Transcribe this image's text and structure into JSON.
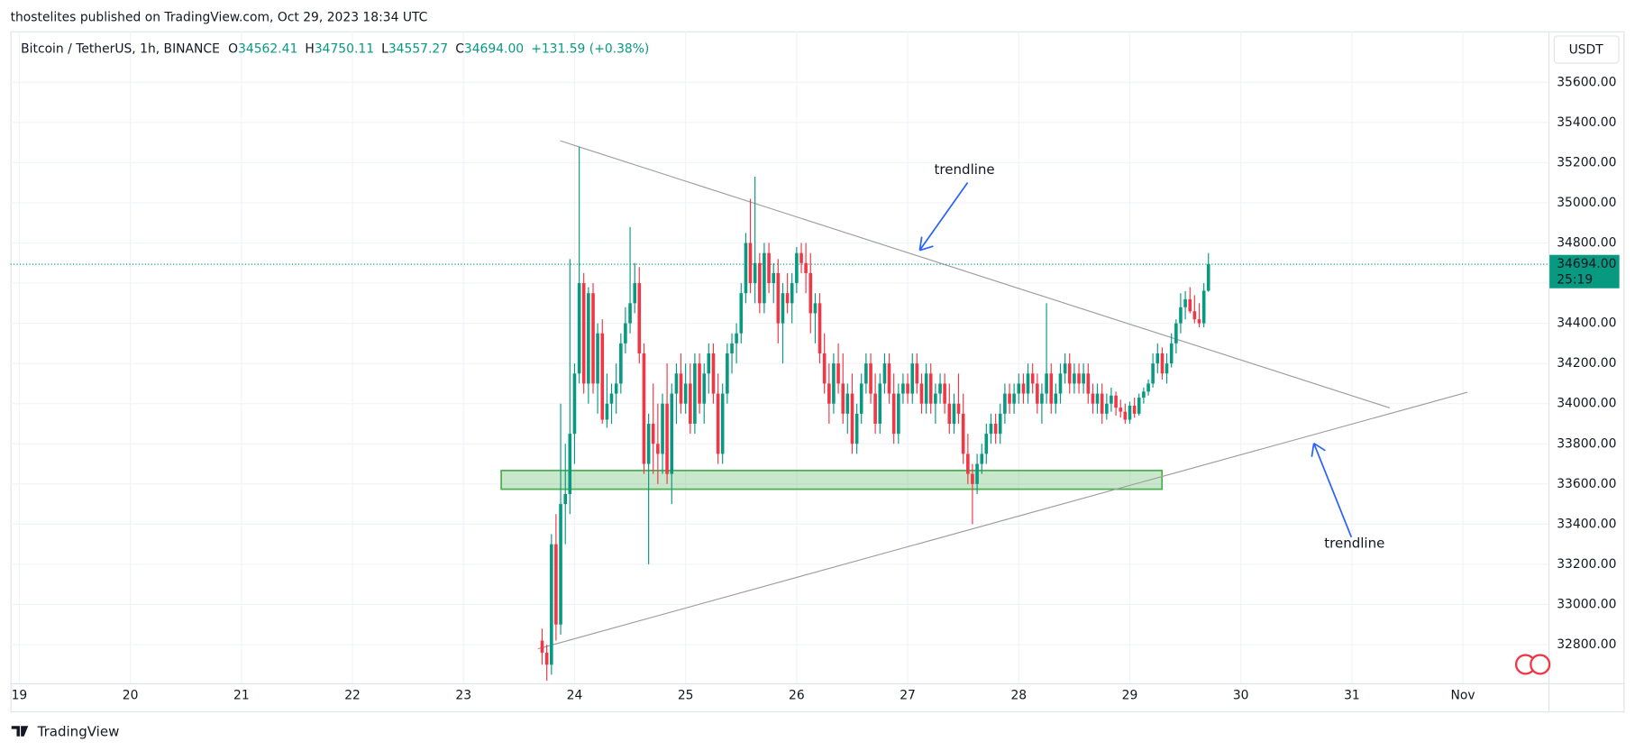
{
  "published": "thostelites published on TradingView.com, Oct 29, 2023 18:34 UTC",
  "footer": "TradingView",
  "chart_data": {
    "type": "candlestick",
    "symbol": "Bitcoin / TetherUS, 1h, BINANCE",
    "legend": [
      {
        "key": "O",
        "value": "34562.41"
      },
      {
        "key": "H",
        "value": "34750.11"
      },
      {
        "key": "L",
        "value": "34557.27"
      },
      {
        "key": "C",
        "value": "34694.00"
      }
    ],
    "change": "+131.59 (+0.38%)",
    "currency": "USDT",
    "up_color": "#089981",
    "down_color": "#f23645",
    "grid": true,
    "xlim": [
      18.92,
      32.77
    ],
    "xticks": [
      19,
      20,
      21,
      22,
      23,
      24,
      25,
      26,
      27,
      28,
      29,
      30,
      31,
      {
        "value": 32,
        "label": "Nov"
      }
    ],
    "ylim": [
      32608,
      35854
    ],
    "yticks": [
      {
        "value": 32800,
        "label": "32800.00"
      },
      {
        "value": 33000,
        "label": "33000.00"
      },
      {
        "value": 33200,
        "label": "33200.00"
      },
      {
        "value": 33400,
        "label": "33400.00"
      },
      {
        "value": 33600,
        "label": "33600.00"
      },
      {
        "value": 33800,
        "label": "33800.00"
      },
      {
        "value": 34000,
        "label": "34000.00"
      },
      {
        "value": 34200,
        "label": "34200.00"
      },
      {
        "value": 34400,
        "label": "34400.00"
      },
      {
        "value": 34600,
        "label": "34600.00"
      },
      {
        "value": 34800,
        "label": "34800.00"
      },
      {
        "value": 35000,
        "label": "35000.00"
      },
      {
        "value": 35200,
        "label": "35200.00"
      },
      {
        "value": 35400,
        "label": "35400.00"
      },
      {
        "value": 35600,
        "label": "35600.00"
      }
    ],
    "last_price": {
      "value": 34694,
      "label": "34694.00"
    },
    "countdown": "25:19",
    "x": [
      23.708,
      23.75,
      23.792,
      23.833,
      23.875,
      23.917,
      23.958,
      24,
      24.042,
      24.083,
      24.125,
      24.167,
      24.208,
      24.25,
      24.292,
      24.333,
      24.375,
      24.417,
      24.458,
      24.5,
      24.542,
      24.583,
      24.625,
      24.667,
      24.708,
      24.75,
      24.792,
      24.833,
      24.875,
      24.917,
      24.958,
      25,
      25.042,
      25.083,
      25.125,
      25.167,
      25.208,
      25.25,
      25.292,
      25.333,
      25.375,
      25.417,
      25.458,
      25.5,
      25.542,
      25.583,
      25.625,
      25.667,
      25.708,
      25.75,
      25.792,
      25.833,
      25.875,
      25.917,
      25.958,
      26,
      26.042,
      26.083,
      26.125,
      26.167,
      26.208,
      26.25,
      26.292,
      26.333,
      26.375,
      26.417,
      26.458,
      26.5,
      26.542,
      26.583,
      26.625,
      26.667,
      26.708,
      26.75,
      26.792,
      26.833,
      26.875,
      26.917,
      26.958,
      27,
      27.042,
      27.083,
      27.125,
      27.167,
      27.208,
      27.25,
      27.292,
      27.333,
      27.375,
      27.417,
      27.458,
      27.5,
      27.542,
      27.583,
      27.625,
      27.667,
      27.708,
      27.75,
      27.792,
      27.833,
      27.875,
      27.917,
      27.958,
      28,
      28.042,
      28.083,
      28.125,
      28.167,
      28.208,
      28.25,
      28.292,
      28.333,
      28.375,
      28.417,
      28.458,
      28.5,
      28.542,
      28.583,
      28.625,
      28.667,
      28.708,
      28.75,
      28.792,
      28.833,
      28.875,
      28.917,
      28.958,
      29,
      29.042,
      29.083,
      29.125,
      29.167,
      29.208,
      29.25,
      29.292,
      29.333,
      29.375,
      29.417,
      29.458,
      29.5,
      29.542,
      29.583,
      29.625,
      29.667,
      29.708
    ],
    "candles": [
      [
        32820,
        32880,
        32700,
        32760
      ],
      [
        32760,
        32800,
        32620,
        32700
      ],
      [
        32700,
        33350,
        32650,
        33300
      ],
      [
        33300,
        33450,
        32820,
        32900
      ],
      [
        32900,
        34000,
        32850,
        33500
      ],
      [
        33500,
        33800,
        33300,
        33550
      ],
      [
        33550,
        34720,
        33450,
        33850
      ],
      [
        33850,
        34200,
        33700,
        34150
      ],
      [
        34150,
        35280,
        34100,
        34600
      ],
      [
        34600,
        34650,
        34050,
        34100
      ],
      [
        34100,
        34580,
        34000,
        34550
      ],
      [
        34550,
        34600,
        34050,
        34100
      ],
      [
        34100,
        34400,
        33950,
        34350
      ],
      [
        34350,
        34420,
        33900,
        33920
      ],
      [
        33920,
        34150,
        33880,
        34000
      ],
      [
        34000,
        34100,
        33900,
        34050
      ],
      [
        34050,
        34200,
        33950,
        34100
      ],
      [
        34100,
        34350,
        34050,
        34300
      ],
      [
        34300,
        34480,
        34250,
        34400
      ],
      [
        34400,
        34880,
        34350,
        34500
      ],
      [
        34500,
        34700,
        34450,
        34600
      ],
      [
        34600,
        34680,
        34200,
        34250
      ],
      [
        34250,
        34300,
        33650,
        33700
      ],
      [
        33700,
        33950,
        33200,
        33900
      ],
      [
        33900,
        34100,
        33650,
        33800
      ],
      [
        33800,
        34000,
        33600,
        33750
      ],
      [
        33750,
        34050,
        33650,
        34000
      ],
      [
        34000,
        34200,
        33600,
        33650
      ],
      [
        33650,
        34100,
        33500,
        34050
      ],
      [
        34050,
        34200,
        33900,
        34150
      ],
      [
        34150,
        34250,
        33950,
        34000
      ],
      [
        34000,
        34200,
        33950,
        34100
      ],
      [
        34100,
        34200,
        33850,
        33900
      ],
      [
        33900,
        34250,
        33850,
        34200
      ],
      [
        34200,
        34250,
        33950,
        34000
      ],
      [
        34000,
        34200,
        33900,
        34150
      ],
      [
        34150,
        34300,
        34050,
        34250
      ],
      [
        34250,
        34300,
        34000,
        34050
      ],
      [
        34050,
        34150,
        33700,
        33750
      ],
      [
        33750,
        34100,
        33700,
        34050
      ],
      [
        34050,
        34300,
        34000,
        34250
      ],
      [
        34250,
        34350,
        34150,
        34300
      ],
      [
        34300,
        34400,
        34200,
        34350
      ],
      [
        34350,
        34600,
        34300,
        34550
      ],
      [
        34550,
        34850,
        34500,
        34800
      ],
      [
        34800,
        35020,
        34550,
        34600
      ],
      [
        34600,
        35130,
        34500,
        34700
      ],
      [
        34700,
        34750,
        34450,
        34500
      ],
      [
        34500,
        34800,
        34450,
        34750
      ],
      [
        34750,
        34800,
        34550,
        34600
      ],
      [
        34600,
        34700,
        34500,
        34650
      ],
      [
        34650,
        34720,
        34300,
        34400
      ],
      [
        34400,
        34600,
        34200,
        34550
      ],
      [
        34550,
        34650,
        34450,
        34500
      ],
      [
        34500,
        34650,
        34400,
        34600
      ],
      [
        34600,
        34780,
        34550,
        34750
      ],
      [
        34750,
        34800,
        34650,
        34700
      ],
      [
        34700,
        34800,
        34550,
        34650
      ],
      [
        34650,
        34750,
        34350,
        34450
      ],
      [
        34450,
        34550,
        34300,
        34500
      ],
      [
        34500,
        34550,
        34200,
        34250
      ],
      [
        34250,
        34350,
        34050,
        34100
      ],
      [
        34100,
        34200,
        33900,
        34000
      ],
      [
        34000,
        34250,
        33950,
        34200
      ],
      [
        34200,
        34300,
        34050,
        34100
      ],
      [
        34100,
        34250,
        33900,
        33950
      ],
      [
        33950,
        34100,
        33850,
        34050
      ],
      [
        34050,
        34150,
        33750,
        33800
      ],
      [
        33800,
        34000,
        33750,
        33950
      ],
      [
        33950,
        34150,
        33900,
        34100
      ],
      [
        34100,
        34250,
        34050,
        34200
      ],
      [
        34200,
        34250,
        34000,
        34050
      ],
      [
        34050,
        34150,
        33850,
        33900
      ],
      [
        33900,
        34150,
        33850,
        34100
      ],
      [
        34100,
        34250,
        34050,
        34200
      ],
      [
        34200,
        34250,
        34000,
        34050
      ],
      [
        34050,
        34150,
        33800,
        33850
      ],
      [
        33850,
        34100,
        33800,
        34050
      ],
      [
        34050,
        34150,
        34000,
        34100
      ],
      [
        34100,
        34150,
        34000,
        34050
      ],
      [
        34050,
        34250,
        34000,
        34200
      ],
      [
        34200,
        34250,
        34050,
        34100
      ],
      [
        34100,
        34150,
        33950,
        34000
      ],
      [
        34000,
        34200,
        33950,
        34150
      ],
      [
        34150,
        34200,
        33950,
        34000
      ],
      [
        34000,
        34100,
        33900,
        34050
      ],
      [
        34050,
        34150,
        34000,
        34100
      ],
      [
        34100,
        34150,
        33950,
        34000
      ],
      [
        34000,
        34100,
        33850,
        33900
      ],
      [
        33900,
        34050,
        33850,
        34000
      ],
      [
        34000,
        34150,
        33900,
        33950
      ],
      [
        33950,
        34050,
        33700,
        33750
      ],
      [
        33750,
        33850,
        33600,
        33650
      ],
      [
        33650,
        33700,
        33400,
        33600
      ],
      [
        33600,
        33750,
        33550,
        33700
      ],
      [
        33700,
        33800,
        33650,
        33750
      ],
      [
        33750,
        33900,
        33700,
        33850
      ],
      [
        33850,
        33950,
        33800,
        33900
      ],
      [
        33900,
        33950,
        33800,
        33850
      ],
      [
        33850,
        34000,
        33800,
        33950
      ],
      [
        33950,
        34100,
        33900,
        34050
      ],
      [
        34050,
        34100,
        33950,
        34000
      ],
      [
        34000,
        34100,
        33950,
        34050
      ],
      [
        34050,
        34150,
        34000,
        34100
      ],
      [
        34100,
        34150,
        34000,
        34050
      ],
      [
        34050,
        34200,
        34000,
        34150
      ],
      [
        34150,
        34200,
        34050,
        34100
      ],
      [
        34100,
        34150,
        33950,
        34000
      ],
      [
        34000,
        34100,
        33900,
        34050
      ],
      [
        34050,
        34500,
        34000,
        34150
      ],
      [
        34150,
        34200,
        33950,
        34000
      ],
      [
        34000,
        34100,
        33950,
        34050
      ],
      [
        34050,
        34200,
        34000,
        34150
      ],
      [
        34150,
        34250,
        34100,
        34200
      ],
      [
        34200,
        34250,
        34050,
        34100
      ],
      [
        34100,
        34200,
        34050,
        34150
      ],
      [
        34150,
        34200,
        34050,
        34100
      ],
      [
        34100,
        34200,
        34050,
        34150
      ],
      [
        34150,
        34200,
        34000,
        34050
      ],
      [
        34050,
        34100,
        33950,
        34000
      ],
      [
        34000,
        34100,
        33950,
        34050
      ],
      [
        34050,
        34100,
        33900,
        33950
      ],
      [
        33950,
        34050,
        33920,
        34000
      ],
      [
        34000,
        34080,
        33960,
        34040
      ],
      [
        34040,
        34060,
        33940,
        33980
      ],
      [
        33980,
        34020,
        33930,
        33960
      ],
      [
        33960,
        34000,
        33900,
        33920
      ],
      [
        33920,
        34010,
        33900,
        33990
      ],
      [
        33990,
        34030,
        33930,
        33950
      ],
      [
        33950,
        34050,
        33940,
        34030
      ],
      [
        34030,
        34080,
        34000,
        34060
      ],
      [
        34060,
        34120,
        34040,
        34100
      ],
      [
        34100,
        34250,
        34080,
        34200
      ],
      [
        34200,
        34300,
        34150,
        34250
      ],
      [
        34250,
        34280,
        34120,
        34150
      ],
      [
        34150,
        34250,
        34100,
        34200
      ],
      [
        34200,
        34350,
        34180,
        34300
      ],
      [
        34300,
        34420,
        34250,
        34400
      ],
      [
        34400,
        34550,
        34350,
        34480
      ],
      [
        34480,
        34560,
        34420,
        34520
      ],
      [
        34520,
        34580,
        34450,
        34460
      ],
      [
        34460,
        34540,
        34400,
        34420
      ],
      [
        34420,
        34500,
        34380,
        34400
      ],
      [
        34400,
        34600,
        34380,
        34562.41
      ],
      [
        34562.41,
        34750.11,
        34557.27,
        34694
      ]
    ],
    "drawings": {
      "trendlines": [
        {
          "points": [
            [
              23.87,
              35309
            ],
            [
              31.34,
              33979
            ]
          ],
          "color": "#9e9e9e"
        },
        {
          "points": [
            [
              23.67,
              32779
            ],
            [
              32.04,
              34057
            ]
          ],
          "color": "#9e9e9e"
        }
      ],
      "zone": {
        "x": [
          23.34,
          29.29
        ],
        "y": [
          33574,
          33667
        ],
        "color": "#4caf50"
      }
    },
    "annotations": [
      {
        "text": "trendline",
        "color": "#f23645"
      },
      {
        "text": "trendline",
        "color": "#089981"
      }
    ]
  }
}
